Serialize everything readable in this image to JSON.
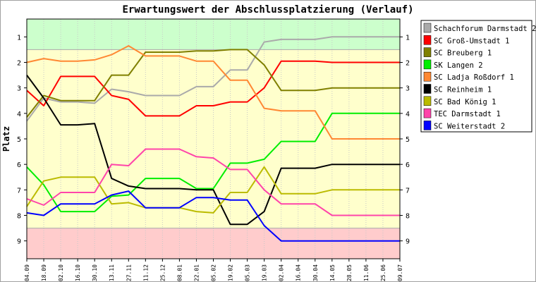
{
  "chart_data": {
    "type": "line",
    "title": "Erwartungswert der Abschlussplatzierung (Verlauf)",
    "xlabel": "",
    "ylabel": "Platz",
    "ylim": [
      0.3,
      9.7
    ],
    "y_inverted": true,
    "y_ticks": [
      "1",
      "2",
      "3",
      "4",
      "5",
      "6",
      "7",
      "8",
      "9"
    ],
    "zones": [
      {
        "name": "promotion",
        "from": 0.3,
        "to": 1.5,
        "color": "#ccffcc"
      },
      {
        "name": "stay",
        "from": 1.5,
        "to": 8.5,
        "color": "#ffffcc"
      },
      {
        "name": "relegation",
        "from": 8.5,
        "to": 9.7,
        "color": "#ffcccc"
      }
    ],
    "categories": [
      "04.09",
      "18.09",
      "02.10",
      "16.10",
      "30.10",
      "13.11",
      "27.11",
      "11.12",
      "25.12",
      "08.01",
      "22.01",
      "05.02",
      "19.02",
      "05.03",
      "19.03",
      "02.04",
      "16.04",
      "30.04",
      "14.05",
      "28.05",
      "11.06",
      "25.06",
      "09.07"
    ],
    "legend_position": "top-right",
    "series": [
      {
        "name": "Schachforum Darmstadt 2",
        "color": "#aaaaaa",
        "values": [
          4.3,
          3.4,
          3.55,
          3.55,
          3.6,
          3.05,
          3.15,
          3.3,
          3.3,
          3.3,
          2.95,
          2.95,
          2.3,
          2.3,
          1.2,
          1.1,
          1.1,
          1.1,
          1.0,
          1.0,
          1.0,
          1.0,
          1.0
        ]
      },
      {
        "name": "SC Groß-Umstadt 1",
        "color": "#ff0000",
        "values": [
          3.1,
          3.7,
          2.55,
          2.55,
          2.55,
          3.3,
          3.45,
          4.1,
          4.1,
          4.1,
          3.7,
          3.7,
          3.55,
          3.55,
          3.0,
          1.95,
          1.95,
          1.95,
          2.0,
          2.0,
          2.0,
          2.0,
          2.0
        ]
      },
      {
        "name": "SC Breuberg 1",
        "color": "#808000",
        "values": [
          4.15,
          3.3,
          3.5,
          3.5,
          3.5,
          2.5,
          2.5,
          1.6,
          1.6,
          1.6,
          1.55,
          1.55,
          1.5,
          1.5,
          2.1,
          3.1,
          3.1,
          3.1,
          3.0,
          3.0,
          3.0,
          3.0,
          3.0
        ]
      },
      {
        "name": "SK Langen 2",
        "color": "#00ee00",
        "values": [
          6.1,
          6.8,
          7.85,
          7.85,
          7.85,
          7.25,
          7.2,
          6.55,
          6.55,
          6.55,
          6.95,
          6.95,
          5.95,
          5.95,
          5.8,
          5.1,
          5.1,
          5.1,
          4.0,
          4.0,
          4.0,
          4.0,
          4.0
        ]
      },
      {
        "name": "SC Ladja Roßdorf 1",
        "color": "#ff8833",
        "values": [
          2.0,
          1.85,
          1.95,
          1.95,
          1.9,
          1.7,
          1.35,
          1.75,
          1.75,
          1.75,
          1.95,
          1.95,
          2.7,
          2.7,
          3.8,
          3.9,
          3.9,
          3.9,
          5.0,
          5.0,
          5.0,
          5.0,
          5.0
        ]
      },
      {
        "name": "SC Reinheim 1",
        "color": "#000000",
        "values": [
          2.5,
          3.4,
          4.45,
          4.45,
          4.4,
          6.55,
          6.85,
          6.95,
          6.95,
          6.95,
          7.0,
          7.0,
          8.35,
          8.35,
          7.85,
          6.15,
          6.15,
          6.15,
          6.0,
          6.0,
          6.0,
          6.0,
          6.0
        ]
      },
      {
        "name": "SC Bad König 1",
        "color": "#bbbb00",
        "values": [
          7.65,
          6.65,
          6.5,
          6.5,
          6.5,
          7.55,
          7.5,
          7.7,
          7.7,
          7.7,
          7.85,
          7.9,
          7.1,
          7.1,
          6.1,
          7.15,
          7.15,
          7.15,
          7.0,
          7.0,
          7.0,
          7.0,
          7.0
        ]
      },
      {
        "name": "TEC Darmstadt 1",
        "color": "#ff44aa",
        "values": [
          7.35,
          7.6,
          7.1,
          7.1,
          7.1,
          6.0,
          6.05,
          5.4,
          5.4,
          5.4,
          5.7,
          5.75,
          6.2,
          6.2,
          7.0,
          7.55,
          7.55,
          7.55,
          8.0,
          8.0,
          8.0,
          8.0,
          8.0
        ]
      },
      {
        "name": "SC Weiterstadt 2",
        "color": "#0000ff",
        "values": [
          7.9,
          8.0,
          7.55,
          7.55,
          7.55,
          7.2,
          7.05,
          7.7,
          7.7,
          7.7,
          7.3,
          7.3,
          7.4,
          7.4,
          8.4,
          9.0,
          9.0,
          9.0,
          9.0,
          9.0,
          9.0,
          9.0,
          9.0
        ]
      }
    ]
  }
}
